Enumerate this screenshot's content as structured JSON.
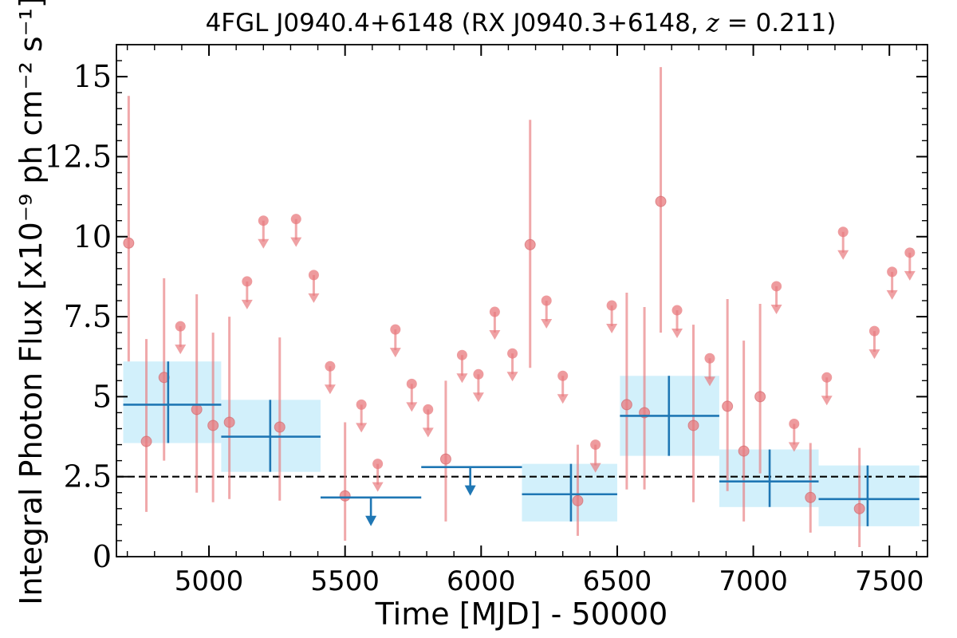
{
  "chart_data": {
    "type": "scatter",
    "title": "4FGL J0940.4+6148 (RX J0940.3+6148, z = 0.211)",
    "title_parts": {
      "prefix": "4FGL J0940.4+6148 (RX J0940.3+6148, ",
      "z_symbol": "z",
      "z_value": " = 0.211",
      "suffix": ")"
    },
    "xlabel": "Time [MJD] - 50000",
    "ylabel": "Integral Photon Flux [x10⁻⁹ ph cm⁻² s⁻¹]",
    "xlim": [
      4660,
      7640
    ],
    "ylim": [
      0,
      16
    ],
    "x_ticks": [
      5000,
      5500,
      6000,
      6500,
      7000,
      7500
    ],
    "y_ticks": [
      0,
      2.5,
      5,
      7.5,
      10,
      12.5,
      15
    ],
    "y_tick_labels": [
      "0",
      "2.5",
      "5",
      "7.5",
      "10",
      "12.5",
      "15"
    ],
    "x_minor_step": 100,
    "y_minor_step": 0.5,
    "reference_line": {
      "y": 2.5,
      "style": "dashed",
      "color": "#000000"
    },
    "colors": {
      "fine_bins": "#e8797d",
      "coarse_bins": "#1f77b4",
      "coarse_band": "#cdeefb"
    },
    "series": [
      {
        "type": "measurement",
        "points": [
          {
            "x": 4705,
            "y": 9.8,
            "ylo": 6.1,
            "yhi": 14.4
          },
          {
            "x": 4770,
            "y": 3.6,
            "ylo": 1.4,
            "yhi": 6.8
          },
          {
            "x": 4835,
            "y": 5.6,
            "ylo": 3.0,
            "yhi": 8.7
          },
          {
            "x": 4955,
            "y": 4.6,
            "ylo": 2.0,
            "yhi": 8.2
          },
          {
            "x": 5015,
            "y": 4.1,
            "ylo": 1.7,
            "yhi": 7.0
          },
          {
            "x": 5075,
            "y": 4.2,
            "ylo": 1.8,
            "yhi": 7.5
          },
          {
            "x": 5260,
            "y": 4.05,
            "ylo": 1.75,
            "yhi": 6.85
          },
          {
            "x": 5500,
            "y": 1.9,
            "ylo": 0.5,
            "yhi": 4.2
          },
          {
            "x": 5870,
            "y": 3.05,
            "ylo": 1.1,
            "yhi": 5.5
          },
          {
            "x": 6180,
            "y": 9.75,
            "ylo": 5.9,
            "yhi": 13.65
          },
          {
            "x": 6355,
            "y": 1.75,
            "ylo": 0.65,
            "yhi": 3.5
          },
          {
            "x": 6535,
            "y": 4.75,
            "ylo": 2.1,
            "yhi": 8.25
          },
          {
            "x": 6600,
            "y": 4.5,
            "ylo": 2.1,
            "yhi": 7.8
          },
          {
            "x": 6660,
            "y": 11.1,
            "ylo": 7.0,
            "yhi": 15.3
          },
          {
            "x": 6780,
            "y": 4.1,
            "ylo": 1.7,
            "yhi": 7.25
          },
          {
            "x": 6905,
            "y": 4.7,
            "ylo": 2.05,
            "yhi": 8.05
          },
          {
            "x": 6965,
            "y": 3.3,
            "ylo": 1.1,
            "yhi": 6.75
          },
          {
            "x": 7025,
            "y": 5.0,
            "ylo": 2.6,
            "yhi": 7.9
          },
          {
            "x": 7210,
            "y": 1.85,
            "ylo": 0.75,
            "yhi": 3.55
          },
          {
            "x": 7390,
            "y": 1.5,
            "ylo": 0.3,
            "yhi": 3.4
          }
        ]
      },
      {
        "type": "upper_limit",
        "points": [
          {
            "x": 4895,
            "y": 7.2
          },
          {
            "x": 5140,
            "y": 8.6
          },
          {
            "x": 5200,
            "y": 10.5
          },
          {
            "x": 5320,
            "y": 10.55
          },
          {
            "x": 5385,
            "y": 8.8
          },
          {
            "x": 5445,
            "y": 5.95
          },
          {
            "x": 5560,
            "y": 4.75
          },
          {
            "x": 5620,
            "y": 2.9
          },
          {
            "x": 5685,
            "y": 7.1
          },
          {
            "x": 5745,
            "y": 5.4
          },
          {
            "x": 5805,
            "y": 4.6
          },
          {
            "x": 5930,
            "y": 6.3
          },
          {
            "x": 5990,
            "y": 5.7
          },
          {
            "x": 6050,
            "y": 7.65
          },
          {
            "x": 6115,
            "y": 6.35
          },
          {
            "x": 6240,
            "y": 8.0
          },
          {
            "x": 6300,
            "y": 5.65
          },
          {
            "x": 6420,
            "y": 3.5
          },
          {
            "x": 6480,
            "y": 7.85
          },
          {
            "x": 6720,
            "y": 7.7
          },
          {
            "x": 6840,
            "y": 6.2
          },
          {
            "x": 7085,
            "y": 8.45
          },
          {
            "x": 7150,
            "y": 4.15
          },
          {
            "x": 7270,
            "y": 5.6
          },
          {
            "x": 7330,
            "y": 10.15
          },
          {
            "x": 7445,
            "y": 7.05
          },
          {
            "x": 7510,
            "y": 8.9
          },
          {
            "x": 7575,
            "y": 9.5
          }
        ]
      },
      {
        "type": "binned_measurement",
        "points": [
          {
            "x": 4850,
            "xlo": 4685,
            "xhi": 5045,
            "y": 4.75,
            "ylo": 3.55,
            "yhi": 6.1
          },
          {
            "x": 5225,
            "xlo": 5045,
            "xhi": 5410,
            "y": 3.75,
            "ylo": 2.65,
            "yhi": 4.9
          },
          {
            "x": 6330,
            "xlo": 6150,
            "xhi": 6500,
            "y": 1.95,
            "ylo": 1.1,
            "yhi": 2.9
          },
          {
            "x": 6690,
            "xlo": 6510,
            "xhi": 6875,
            "y": 4.4,
            "ylo": 3.15,
            "yhi": 5.65
          },
          {
            "x": 7060,
            "xlo": 6875,
            "xhi": 7240,
            "y": 2.35,
            "ylo": 1.55,
            "yhi": 3.35
          },
          {
            "x": 7420,
            "xlo": 7240,
            "xhi": 7610,
            "y": 1.8,
            "ylo": 0.95,
            "yhi": 2.85
          }
        ]
      },
      {
        "type": "binned_upper_limit",
        "points": [
          {
            "x": 5595,
            "xlo": 5410,
            "xhi": 5780,
            "y": 1.85
          },
          {
            "x": 5960,
            "xlo": 5780,
            "xhi": 6150,
            "y": 2.8
          }
        ]
      }
    ]
  }
}
